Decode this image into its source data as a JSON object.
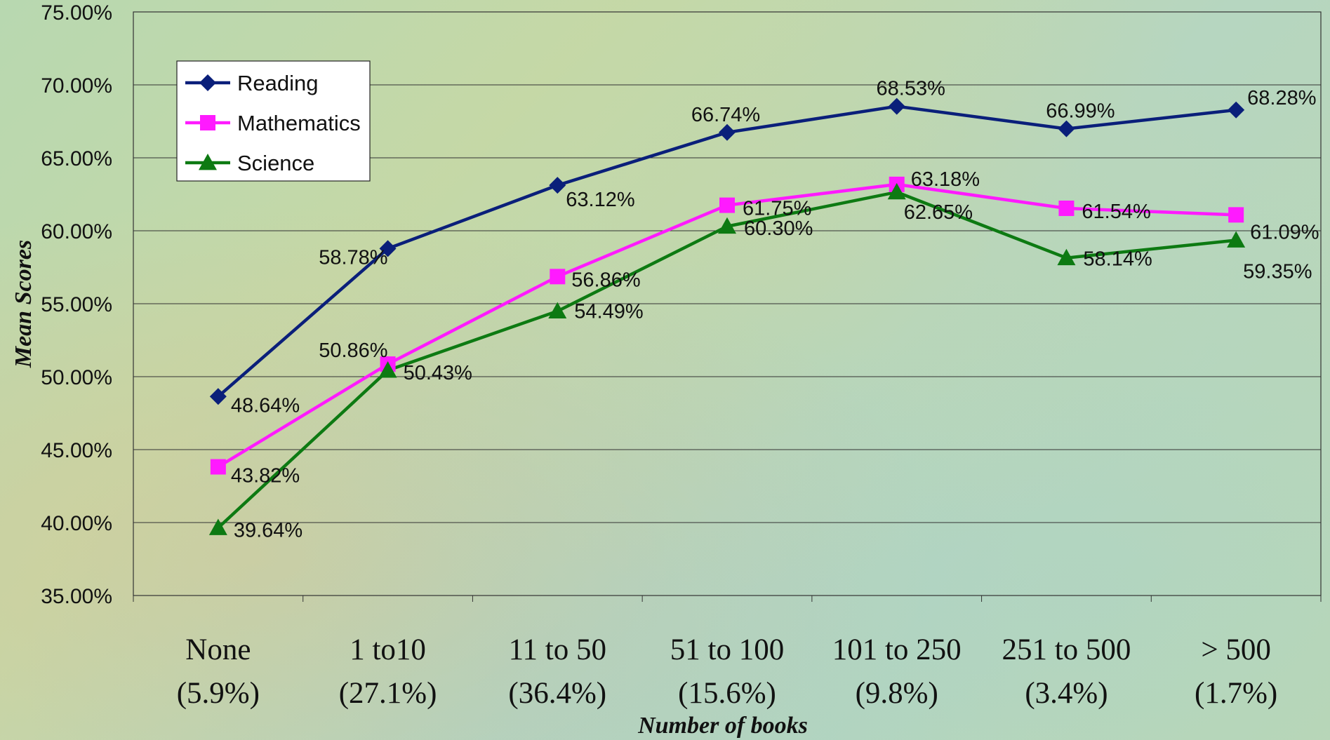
{
  "chart_data": {
    "type": "line",
    "xlabel": "Number of books",
    "ylabel": "Mean Scores",
    "ylim": [
      35,
      75
    ],
    "yticks": [
      "35.00%",
      "40.00%",
      "45.00%",
      "50.00%",
      "55.00%",
      "60.00%",
      "65.00%",
      "70.00%",
      "75.00%"
    ],
    "categories": [
      {
        "name": "None",
        "pct": "(5.9%)"
      },
      {
        "name": "1 to10",
        "pct": "(27.1%)"
      },
      {
        "name": "11 to 50",
        "pct": "(36.4%)"
      },
      {
        "name": "51 to 100",
        "pct": "(15.6%)"
      },
      {
        "name": "101 to 250",
        "pct": "(9.8%)"
      },
      {
        "name": "251 to 500",
        "pct": "(3.4%)"
      },
      {
        "name": "> 500",
        "pct": "(1.7%)"
      }
    ],
    "grid": "horizontal",
    "legend_position": "top-left",
    "series": [
      {
        "name": "Reading",
        "color": "#0a1f7a",
        "marker": "diamond",
        "values": [
          48.64,
          58.78,
          63.12,
          66.74,
          68.53,
          66.99,
          68.28
        ],
        "labels": [
          "48.64%",
          "58.78%",
          "63.12%",
          "66.74%",
          "68.53%",
          "66.99%",
          "68.28%"
        ]
      },
      {
        "name": "Mathematics",
        "color": "#ff1aff",
        "marker": "square",
        "values": [
          43.82,
          50.86,
          56.86,
          61.75,
          63.18,
          61.54,
          61.09
        ],
        "labels": [
          "43.82%",
          "50.86%",
          "56.86%",
          "61.75%",
          "63.18%",
          "61.54%",
          "61.09%"
        ]
      },
      {
        "name": "Science",
        "color": "#0d7a12",
        "marker": "triangle",
        "values": [
          39.64,
          50.43,
          54.49,
          60.3,
          62.65,
          58.14,
          59.35
        ],
        "labels": [
          "39.64%",
          "50.43%",
          "54.49%",
          "60.30%",
          "62.65%",
          "58.14%",
          "59.35%"
        ]
      }
    ]
  }
}
